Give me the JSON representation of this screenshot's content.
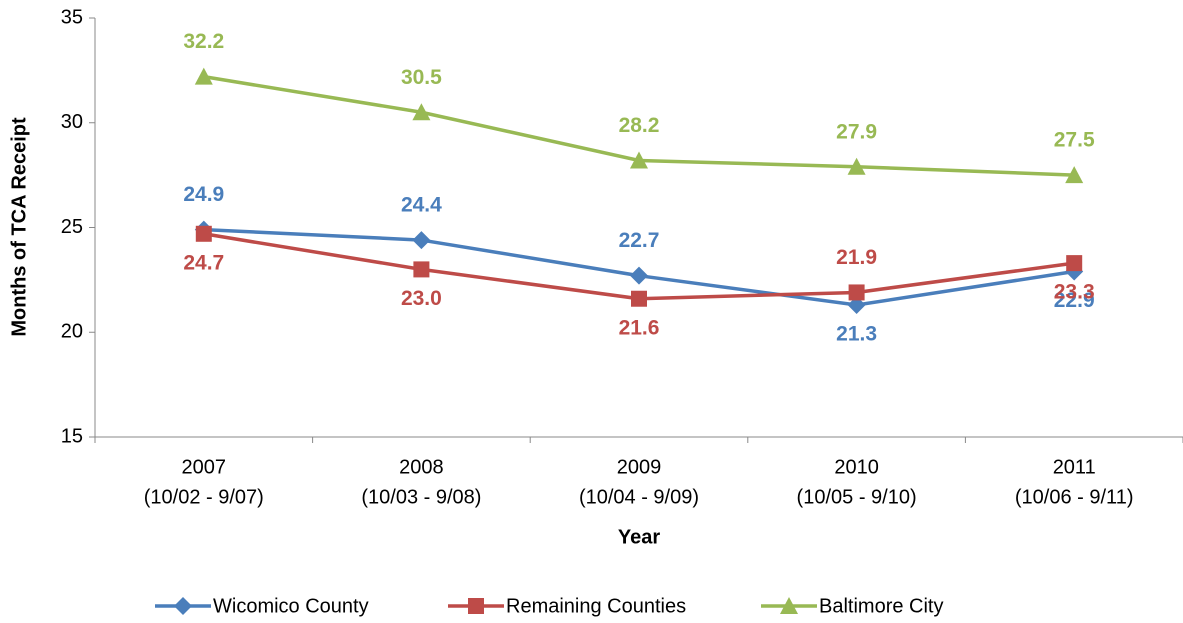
{
  "chart_data": {
    "type": "line",
    "x_label": "Year",
    "y_label": "Months of TCA Receipt",
    "categories": [
      [
        "2007",
        "(10/02 - 9/07)"
      ],
      [
        "2008",
        "(10/03 - 9/08)"
      ],
      [
        "2009",
        "(10/04 - 9/09)"
      ],
      [
        "2010",
        "(10/05 - 9/10)"
      ],
      [
        "2011",
        "(10/06 - 9/11)"
      ]
    ],
    "series": [
      {
        "name": "Wicomico County",
        "color": "#4a7ebb",
        "marker": "diamond",
        "values": [
          24.9,
          24.4,
          22.7,
          21.3,
          22.9
        ],
        "value_labels": [
          "24.9",
          "24.4",
          "22.7",
          "21.3",
          "22.9"
        ]
      },
      {
        "name": "Remaining Counties",
        "color": "#be4b48",
        "marker": "square",
        "values": [
          24.7,
          23,
          21.6,
          21.9,
          23.3
        ],
        "value_labels": [
          "24.7",
          "23.0",
          "21.6",
          "21.9",
          "23.3"
        ]
      },
      {
        "name": "Baltimore City",
        "color": "#98b954",
        "marker": "triangle",
        "values": [
          32.2,
          30.5,
          28.2,
          27.9,
          27.5
        ],
        "value_labels": [
          "32.2",
          "30.5",
          "28.2",
          "27.9",
          "27.5"
        ]
      }
    ],
    "ylim": [
      15,
      35
    ],
    "yticks": [
      15,
      20,
      25,
      30,
      35
    ],
    "legend": "bottom"
  }
}
